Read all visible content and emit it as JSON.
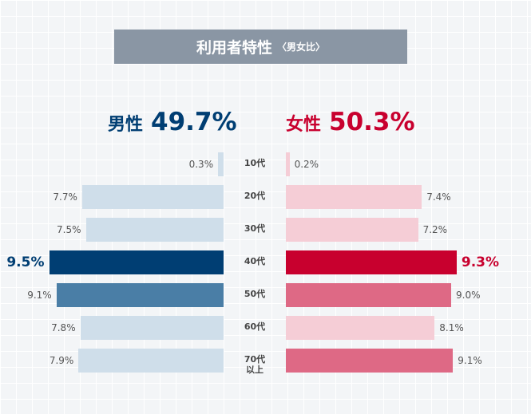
{
  "chart_data": {
    "type": "butterfly",
    "title": "利用者特性",
    "subtitle": "〈男女比〉",
    "categories": [
      "10代",
      "20代",
      "30代",
      "40代",
      "50代",
      "60代",
      "70代以上"
    ],
    "series": [
      {
        "name": "男性",
        "total_label": "49.7%",
        "color": "#003e73",
        "emphasis_color": "#003e73",
        "colors": [
          "#cfdeea",
          "#cfdeea",
          "#cfdeea",
          "#003e73",
          "#4a7ea6",
          "#cfdeea",
          "#cfdeea"
        ],
        "values": [
          0.3,
          7.7,
          7.5,
          9.5,
          9.1,
          7.8,
          7.9
        ],
        "value_labels": [
          "0.3%",
          "7.7%",
          "7.5%",
          "9.5%",
          "9.1%",
          "7.8%",
          "7.9%"
        ]
      },
      {
        "name": "女性",
        "total_label": "50.3%",
        "color": "#c8002e",
        "emphasis_color": "#c8002e",
        "colors": [
          "#f5cdd6",
          "#f5cdd6",
          "#f5cdd6",
          "#c8002e",
          "#de6985",
          "#f5cdd6",
          "#de6985"
        ],
        "values": [
          0.2,
          7.4,
          7.2,
          9.3,
          9.0,
          8.1,
          9.1
        ],
        "value_labels": [
          "0.2%",
          "7.4%",
          "7.2%",
          "9.3%",
          "9.0%",
          "8.1%",
          "9.1%"
        ]
      }
    ]
  }
}
